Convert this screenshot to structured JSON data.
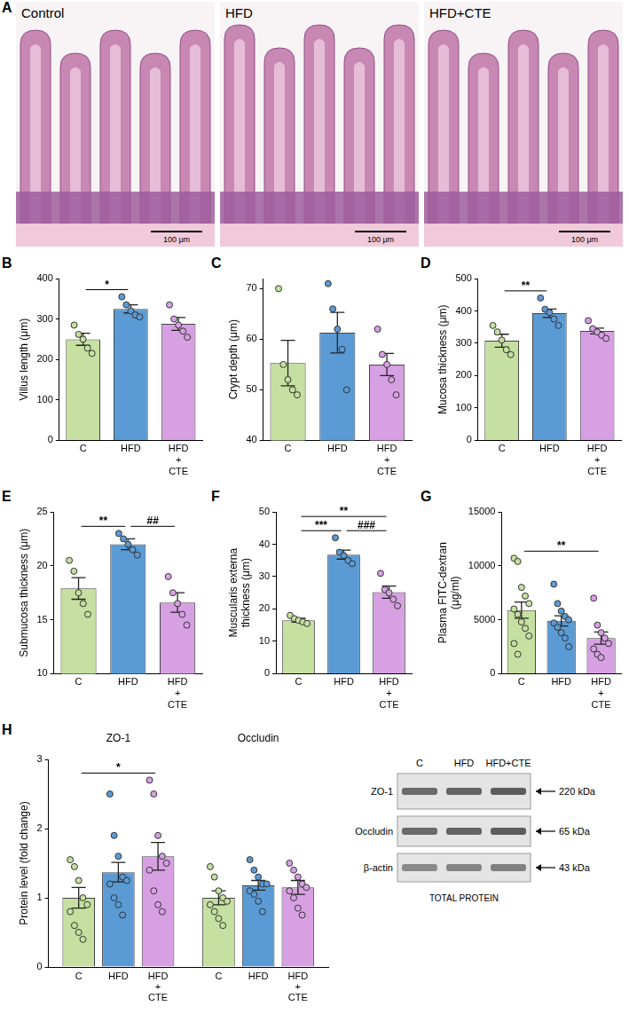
{
  "panel_a": {
    "panel": "A",
    "images": [
      {
        "label": "Control",
        "scale_bar": "100 μm"
      },
      {
        "label": "HFD",
        "scale_bar": "100 μm"
      },
      {
        "label": "HFD+CTE",
        "scale_bar": "100 μm"
      }
    ]
  },
  "chart_data": [
    {
      "panel": "B",
      "type": "bar",
      "y_label": "Villus length (μm)",
      "categories": [
        "C",
        "HFD",
        "HFD + CTE"
      ],
      "values": [
        250,
        325,
        288
      ],
      "errors": [
        15,
        10,
        16
      ],
      "points": [
        [
          285,
          262,
          250,
          228,
          215
        ],
        [
          355,
          335,
          320,
          310,
          305
        ],
        [
          335,
          300,
          285,
          270,
          255
        ]
      ],
      "colors": [
        "#c5e0a0",
        "#5b9bd5",
        "#d7a0e3"
      ],
      "ylim": [
        0,
        400
      ],
      "yticks": [
        0,
        100,
        200,
        300,
        400
      ],
      "grid": false,
      "annotations": [
        {
          "between": [
            "C",
            "HFD"
          ],
          "label": "*"
        }
      ]
    },
    {
      "panel": "C",
      "type": "bar",
      "y_label": "Crypt depth (μm)",
      "categories": [
        "C",
        "HFD",
        "HFD + CTE"
      ],
      "values": [
        55.3,
        61.3,
        55.0
      ],
      "errors": [
        4.5,
        4.0,
        2.2
      ],
      "points": [
        [
          70,
          55,
          52,
          50,
          49
        ],
        [
          71,
          66,
          62,
          58,
          50
        ],
        [
          62,
          57,
          55,
          52,
          49
        ]
      ],
      "colors": [
        "#c5e0a0",
        "#5b9bd5",
        "#d7a0e3"
      ],
      "ylim": [
        40,
        72
      ],
      "yticks": [
        40,
        50,
        60,
        70
      ],
      "grid": false,
      "annotations": []
    },
    {
      "panel": "D",
      "type": "bar",
      "y_label": "Mucosa thickness (μm)",
      "categories": [
        "C",
        "HFD",
        "HFD + CTE"
      ],
      "values": [
        308,
        393,
        338
      ],
      "errors": [
        20,
        13,
        9
      ],
      "points": [
        [
          355,
          335,
          310,
          280,
          265
        ],
        [
          440,
          405,
          395,
          375,
          355
        ],
        [
          370,
          345,
          335,
          325,
          315
        ]
      ],
      "colors": [
        "#c5e0a0",
        "#5b9bd5",
        "#d7a0e3"
      ],
      "ylim": [
        0,
        500
      ],
      "yticks": [
        0,
        100,
        200,
        300,
        400,
        500
      ],
      "grid": false,
      "annotations": [
        {
          "between": [
            "C",
            "HFD"
          ],
          "label": "**"
        }
      ]
    },
    {
      "panel": "E",
      "type": "bar",
      "y_label": "Submucosa thickness (μm)",
      "categories": [
        "C",
        "HFD",
        "HFD + CTE"
      ],
      "values": [
        17.9,
        22.0,
        16.6
      ],
      "errors": [
        1.0,
        0.5,
        0.9
      ],
      "points": [
        [
          20.5,
          19.5,
          17.5,
          16.5,
          15.5
        ],
        [
          23,
          22.5,
          22,
          21.5,
          21
        ],
        [
          19,
          17.5,
          16.5,
          15.5,
          14.5
        ]
      ],
      "colors": [
        "#c5e0a0",
        "#5b9bd5",
        "#d7a0e3"
      ],
      "ylim": [
        10,
        25
      ],
      "yticks": [
        10,
        15,
        20,
        25
      ],
      "grid": false,
      "annotations": [
        {
          "between": [
            "C",
            "HFD"
          ],
          "label": "**"
        },
        {
          "between": [
            "HFD",
            "HFD + CTE"
          ],
          "label": "##"
        }
      ]
    },
    {
      "panel": "F",
      "type": "bar",
      "y_label": "Muscularis externa thickness (μm)",
      "categories": [
        "C",
        "HFD",
        "HFD + CTE"
      ],
      "values": [
        16.5,
        36.8,
        25.2
      ],
      "errors": [
        0.6,
        1.4,
        1.9
      ],
      "points": [
        [
          18,
          17,
          16.5,
          16,
          15.5
        ],
        [
          42,
          37.5,
          36.5,
          35,
          34
        ],
        [
          31,
          26,
          25,
          23,
          21
        ]
      ],
      "colors": [
        "#c5e0a0",
        "#5b9bd5",
        "#d7a0e3"
      ],
      "ylim": [
        0,
        50
      ],
      "yticks": [
        0,
        10,
        20,
        30,
        40,
        50
      ],
      "grid": false,
      "annotations": [
        {
          "between": [
            "C",
            "HFD"
          ],
          "label": "***"
        },
        {
          "between": [
            "C",
            "HFD + CTE"
          ],
          "label": "**"
        },
        {
          "between": [
            "HFD",
            "HFD + CTE"
          ],
          "label": "###"
        }
      ]
    },
    {
      "panel": "G",
      "type": "bar",
      "y_label": "Plasma FITC-dextran (μg/ml)",
      "categories": [
        "C",
        "HFD",
        "HFD + CTE"
      ],
      "values": [
        5900,
        4900,
        3300
      ],
      "errors": [
        750,
        470,
        560
      ],
      "points": [
        [
          10700,
          10400,
          8000,
          7200,
          6500,
          6000,
          5500,
          4800,
          4200,
          3500,
          2800,
          1800
        ],
        [
          8300,
          6500,
          5800,
          5300,
          5000,
          4700,
          4300,
          3800,
          3300,
          2500
        ],
        [
          7000,
          4500,
          3800,
          3300,
          2800,
          2300,
          1800,
          1500
        ]
      ],
      "colors": [
        "#c5e0a0",
        "#5b9bd5",
        "#d7a0e3"
      ],
      "ylim": [
        0,
        15000
      ],
      "yticks": [
        0,
        5000,
        10000,
        15000
      ],
      "grid": false,
      "annotations": [
        {
          "between": [
            "C",
            "HFD + CTE"
          ],
          "label": "**"
        }
      ]
    },
    {
      "panel": "H",
      "type": "bar",
      "y_label": "Protein level (fold change)",
      "categories": [
        "ZO-1",
        "Occludin"
      ],
      "series": [
        {
          "name": "C",
          "color": "#c5e0a0",
          "values": [
            1.0,
            1.0
          ],
          "errors": [
            0.15,
            0.1
          ],
          "points": [
            [
              1.55,
              1.45,
              1.25,
              1.0,
              0.9,
              0.8,
              0.6,
              0.5,
              0.4
            ],
            [
              1.45,
              1.3,
              1.1,
              1.0,
              0.95,
              0.9,
              0.8,
              0.7,
              0.6
            ]
          ]
        },
        {
          "name": "HFD",
          "color": "#5b9bd5",
          "values": [
            1.37,
            1.18
          ],
          "errors": [
            0.14,
            0.07
          ],
          "points": [
            [
              2.5,
              1.9,
              1.6,
              1.3,
              1.25,
              1.2,
              1.0,
              0.9,
              0.75
            ],
            [
              1.55,
              1.4,
              1.3,
              1.2,
              1.2,
              1.1,
              1.05,
              0.95,
              0.8
            ]
          ]
        },
        {
          "name": "HFD + CTE",
          "color": "#d7a0e3",
          "values": [
            1.6,
            1.15
          ],
          "errors": [
            0.2,
            0.1
          ],
          "points": [
            [
              2.7,
              2.5,
              1.9,
              1.6,
              1.5,
              1.4,
              1.1,
              0.9,
              0.8
            ],
            [
              1.5,
              1.4,
              1.3,
              1.2,
              1.15,
              1.1,
              1.0,
              0.85,
              0.75
            ]
          ]
        }
      ],
      "ylim": [
        0,
        3
      ],
      "yticks": [
        0,
        1,
        2,
        3
      ],
      "grid": false,
      "annotations": [
        {
          "group": "ZO-1",
          "between": [
            "C",
            "HFD + CTE"
          ],
          "label": "*"
        }
      ]
    }
  ],
  "blot": {
    "lanes": [
      "C",
      "HFD",
      "HFD+CTE"
    ],
    "bands": [
      {
        "name": "ZO-1",
        "size": "220 kDa"
      },
      {
        "name": "Occludin",
        "size": "65 kDa"
      },
      {
        "name": "β-actin",
        "size": "43 kDa"
      }
    ],
    "caption": "TOTAL PROTEIN"
  }
}
